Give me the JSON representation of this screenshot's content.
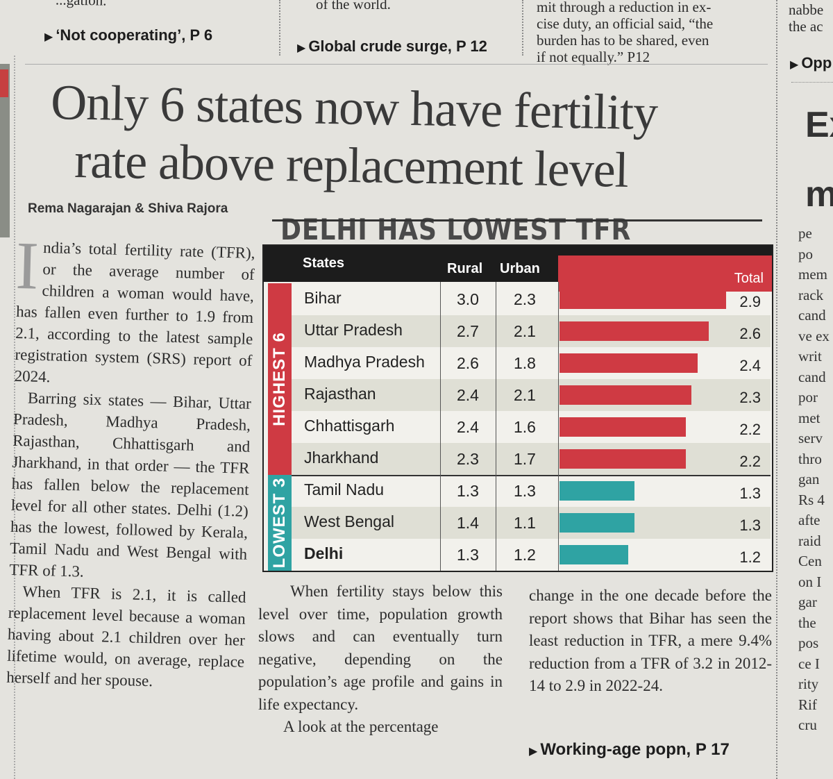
{
  "top": {
    "col1_fragment": "...gation.",
    "col2_fragment": "of the world.",
    "col3_lines": [
      "mit through a reduction in ex-",
      "cise duty, an official said, “the",
      "burden has to be shared, even",
      "if not equally.” P12"
    ],
    "col4_lines": [
      "nabbe",
      "the ac"
    ],
    "pointer1": "‘Not cooperating’, P 6",
    "pointer2": "Global crude surge, P 12",
    "pointer3": "Opp"
  },
  "headline": {
    "line1": "Only 6 states now have fertility",
    "line2": "rate above replacement level"
  },
  "byline": "Rema Nagarajan & Shiva Rajora",
  "body": {
    "col1_p1_dropcap": "I",
    "col1_p1": "ndia’s total fertility rate (TFR), or the average number of children a woman would have, has fallen even further to 1.9 from 2.1, according to the latest sample registration system (SRS) report of 2024.",
    "col1_p2": "Barring six states — Bihar, Uttar Pradesh, Madhya Pradesh, Rajasthan, Chhattisgarh and Jharkhand, in that order — the TFR has fallen below the replacement level for all other states. Delhi (1.2) has the lowest, followed by Kerala, Tamil Nadu and West Bengal with TFR of 1.3.",
    "col1_p3": "When TFR is 2.1, it is called replacement level because a woman having about 2.1 children over her lifetime would, on average, replace herself and her spouse.",
    "col2_p1": "When fertility stays below this level over time, population growth slows and can eventually turn negative, depending on the population’s age profile and gains in life expectancy.",
    "col2_p2": "A look at the percentage",
    "col3_p1": "change in the one decade before the report shows that Bihar has seen the least reduction in TFR, a mere 9.4% reduction from a TFR of 3.2 in 2012-14 to 2.9 in 2022-24.",
    "col3_pointer": "Working-age popn, P 17"
  },
  "right_col": {
    "headline_fragments": [
      "Ex",
      "m"
    ],
    "lines": [
      "pe",
      "po",
      "mem",
      "rack",
      "cand",
      "ve ex",
      "writ",
      "cand",
      "por",
      "met",
      "serv",
      "thro",
      "gan",
      "Rs 4",
      "afte",
      "raid",
      "Cen",
      "on I",
      "gar",
      "the",
      "pos",
      "ce I",
      "rity",
      "Rif",
      "cru"
    ]
  },
  "chart_data": {
    "type": "table",
    "title": "DELHI HAS LOWEST TFR",
    "columns": [
      "States",
      "Rural",
      "Urban",
      "Total"
    ],
    "groups": [
      {
        "label": "HIGHEST 6",
        "color": "#cf3a43",
        "rows": [
          {
            "state": "Bihar",
            "rural": "3.0",
            "urban": "2.3",
            "total": 2.9
          },
          {
            "state": "Uttar Pradesh",
            "rural": "2.7",
            "urban": "2.1",
            "total": 2.6
          },
          {
            "state": "Madhya Pradesh",
            "rural": "2.6",
            "urban": "1.8",
            "total": 2.4
          },
          {
            "state": "Rajasthan",
            "rural": "2.4",
            "urban": "2.1",
            "total": 2.3
          },
          {
            "state": "Chhattisgarh",
            "rural": "2.4",
            "urban": "1.6",
            "total": 2.2
          },
          {
            "state": "Jharkhand",
            "rural": "2.3",
            "urban": "1.7",
            "total": 2.2
          }
        ]
      },
      {
        "label": "LOWEST 3",
        "color": "#2fa3a3",
        "rows": [
          {
            "state": "Tamil Nadu",
            "rural": "1.3",
            "urban": "1.3",
            "total": 1.3
          },
          {
            "state": "West Bengal",
            "rural": "1.4",
            "urban": "1.1",
            "total": 1.3
          },
          {
            "state": "Delhi",
            "rural": "1.3",
            "urban": "1.2",
            "total": 1.2
          }
        ]
      }
    ],
    "total_axis_max": 3.4
  }
}
